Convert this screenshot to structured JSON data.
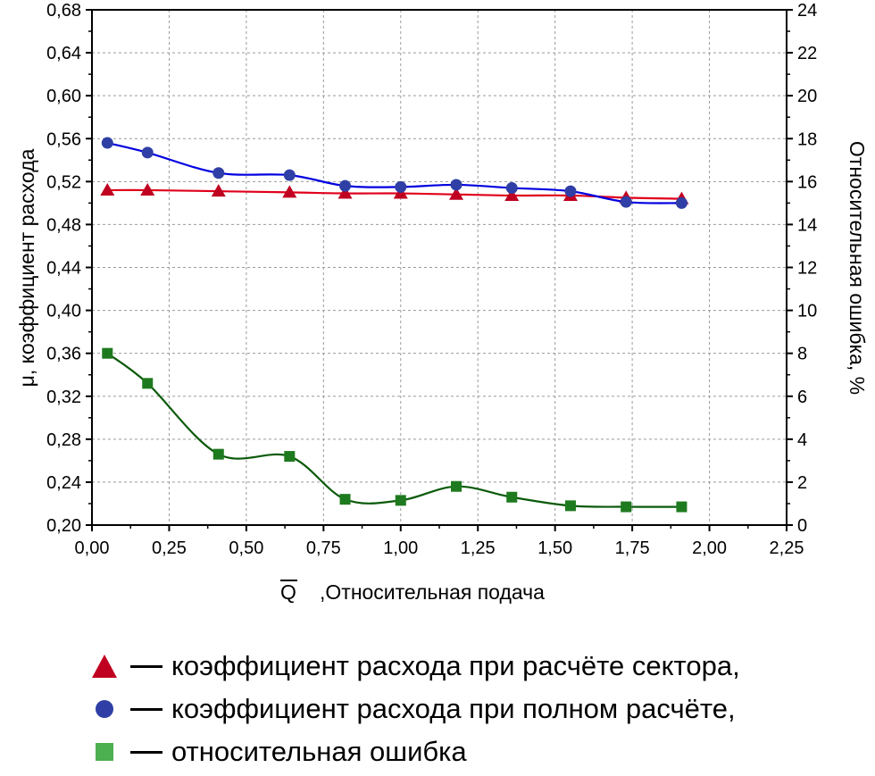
{
  "chart_data": {
    "type": "line",
    "xlabel_bar": "Q",
    "xlabel": ",Относительная подача",
    "ylabel": "μ, коэффициент расхода",
    "ylabel_right": "Относительная ошибка, %",
    "xlim": [
      0,
      2.25
    ],
    "ylim": [
      0.2,
      0.68
    ],
    "ylim_right": [
      0,
      24
    ],
    "grid": true,
    "x_ticks": [
      "0,00",
      "0,25",
      "0,50",
      "0,75",
      "1,00",
      "1,25",
      "1,50",
      "1,75",
      "2,00",
      "2,25"
    ],
    "y_ticks": [
      "0,20",
      "0,24",
      "0,28",
      "0,32",
      "0,36",
      "0,40",
      "0,44",
      "0,48",
      "0,52",
      "0,56",
      "0,60",
      "0,64",
      "0,68"
    ],
    "y_ticks_right": [
      "0",
      "2",
      "4",
      "6",
      "8",
      "10",
      "12",
      "14",
      "16",
      "18",
      "20",
      "22",
      "24"
    ],
    "series": [
      {
        "axis": "left",
        "marker": "triangle",
        "color": "#e0001b",
        "marker_color": "#c00020",
        "x": [
          0.05,
          0.18,
          0.41,
          0.64,
          0.82,
          1.0,
          1.18,
          1.36,
          1.55,
          1.73,
          1.91
        ],
        "y": [
          0.512,
          0.512,
          0.511,
          0.51,
          0.509,
          0.509,
          0.508,
          0.507,
          0.507,
          0.505,
          0.504
        ]
      },
      {
        "axis": "left",
        "marker": "circle",
        "color": "#0000e0",
        "marker_color": "#2f3fa5",
        "x": [
          0.05,
          0.18,
          0.41,
          0.64,
          0.82,
          1.0,
          1.18,
          1.36,
          1.55,
          1.73,
          1.91
        ],
        "y": [
          0.556,
          0.547,
          0.528,
          0.526,
          0.516,
          0.515,
          0.517,
          0.514,
          0.511,
          0.501,
          0.5
        ]
      },
      {
        "axis": "right",
        "marker": "square",
        "color": "#0a5a0a",
        "marker_color": "#1e7a1e",
        "x": [
          0.05,
          0.18,
          0.41,
          0.64,
          0.82,
          1.0,
          1.18,
          1.36,
          1.55,
          1.73,
          1.91
        ],
        "y": [
          8.0,
          6.6,
          3.3,
          3.2,
          1.2,
          1.15,
          1.8,
          1.3,
          0.9,
          0.85,
          0.85
        ]
      }
    ]
  },
  "legend": {
    "items": [
      {
        "label": "коэффициент расхода при расчёте сектора,",
        "marker": "triangle",
        "color": "#c00020"
      },
      {
        "label": "коэффициент расхода при полном расчёте,",
        "marker": "circle",
        "color": "#2f3fa5"
      },
      {
        "label": "относительная ошибка",
        "marker": "square",
        "color": "#4caf50"
      }
    ]
  }
}
